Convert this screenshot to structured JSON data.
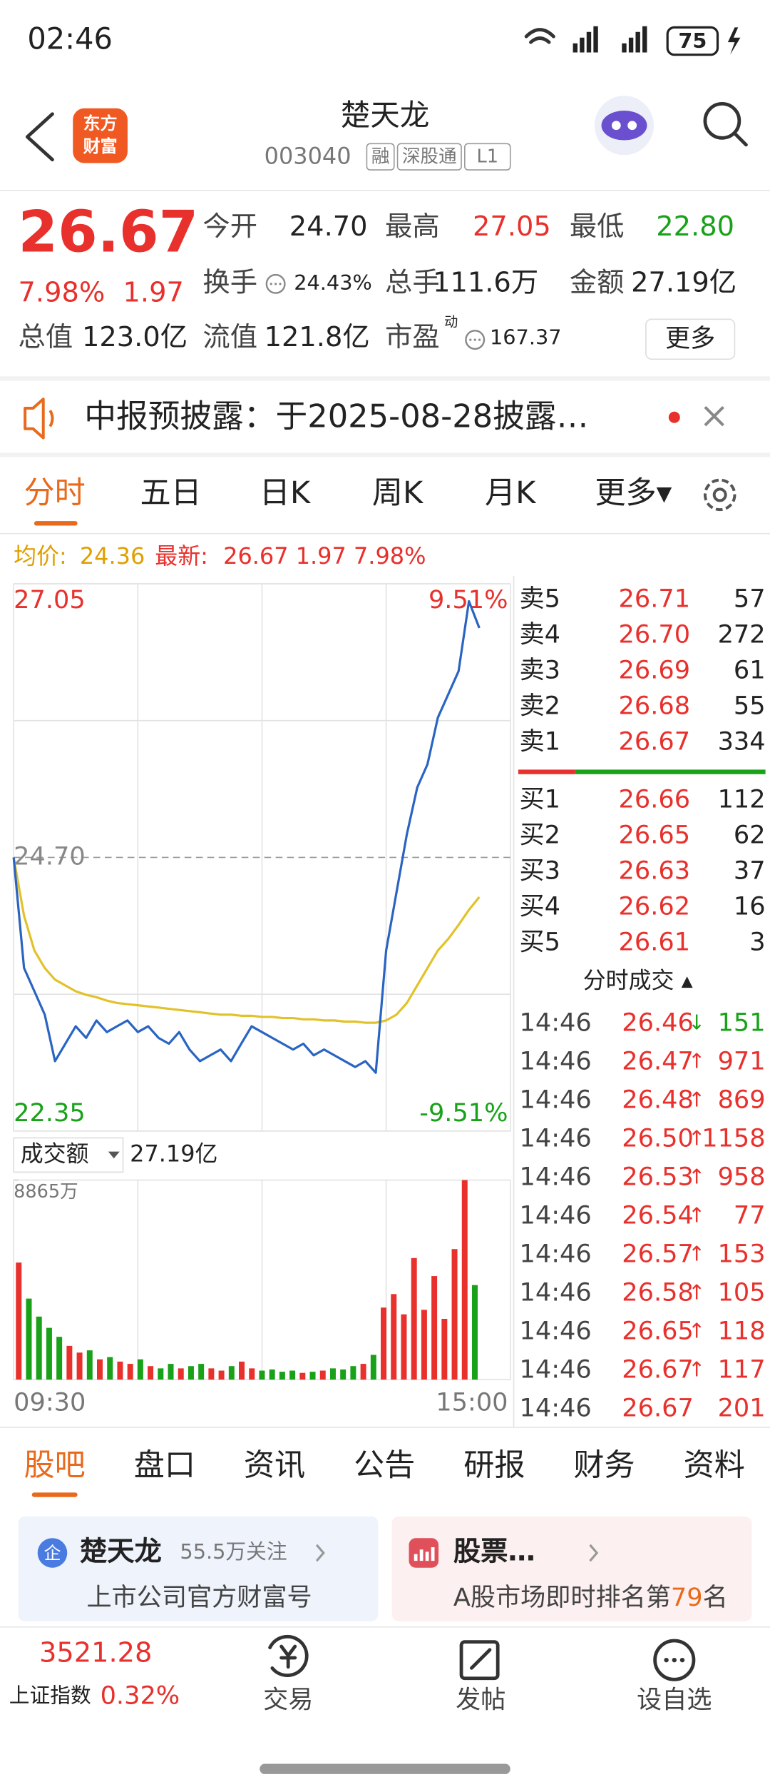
{
  "status_bar": {
    "time": "02:46",
    "battery": "75"
  },
  "header": {
    "logo": [
      "东方",
      "财富"
    ],
    "name": "楚天龙",
    "code": "003040",
    "tags": [
      "融",
      "深股通",
      "L1"
    ]
  },
  "quote": {
    "price": "26.67",
    "change_pct": "7.98%",
    "change": "1.97",
    "fields": [
      {
        "label": "今开",
        "value": "24.70",
        "color": "#222222"
      },
      {
        "label": "最高",
        "value": "27.05",
        "color": "#e8302c"
      },
      {
        "label": "最低",
        "value": "22.80",
        "color": "#19a119"
      },
      {
        "label": "换手",
        "value": "24.43%",
        "color": "#222222"
      },
      {
        "label": "总手",
        "value": "111.6万",
        "color": "#222222"
      },
      {
        "label": "金额",
        "value": "27.19亿",
        "color": "#222222"
      },
      {
        "label": "总值",
        "value": "123.0亿",
        "color": "#222222"
      },
      {
        "label": "流值",
        "value": "121.8亿",
        "color": "#222222"
      },
      {
        "label": "市盈",
        "superscript": "动",
        "value": "167.37",
        "color": "#222222"
      }
    ],
    "more": "更多"
  },
  "notice": "中报预披露：于2025-08-28披露…",
  "chart_tabs": [
    "分时",
    "五日",
    "日K",
    "周K",
    "月K",
    "更多▾"
  ],
  "summary": {
    "avg_label": "均价:",
    "avg": "24.36",
    "latest_label": "最新:",
    "latest": "26.67 1.97 7.98%"
  },
  "chart_data": [
    {
      "type": "line",
      "categories": [
        null,
        null,
        null,
        null,
        null,
        null,
        null,
        null,
        null,
        null,
        null,
        null,
        null,
        null,
        null,
        null,
        null,
        null,
        null,
        null,
        null,
        null,
        null,
        null,
        null,
        null,
        null,
        null,
        null,
        null,
        null,
        null,
        null,
        null,
        null,
        null,
        null,
        null,
        null,
        null,
        null,
        null,
        null,
        null,
        null,
        null,
        null,
        null,
        null
      ],
      "series": [
        {
          "color": "#2a64c2",
          "values": [
            24.7,
            23.75,
            23.55,
            23.35,
            22.95,
            23.1,
            23.25,
            23.15,
            23.3,
            23.2,
            23.25,
            23.3,
            23.2,
            23.25,
            23.15,
            23.1,
            23.2,
            23.05,
            22.95,
            23.0,
            23.05,
            22.95,
            23.1,
            23.25,
            23.2,
            23.15,
            23.1,
            23.05,
            23.1,
            23.0,
            23.05,
            23.0,
            22.95,
            22.9,
            22.95,
            22.85,
            23.9,
            24.4,
            24.9,
            25.3,
            25.5,
            25.9,
            26.1,
            26.3,
            26.9,
            26.67,
            null,
            null,
            null
          ]
        },
        {
          "color": "#e2c22a",
          "values": [
            24.7,
            24.2,
            23.9,
            23.75,
            23.65,
            23.6,
            23.55,
            23.52,
            23.5,
            23.47,
            23.45,
            23.44,
            23.43,
            23.42,
            23.41,
            23.4,
            23.39,
            23.38,
            23.37,
            23.36,
            23.35,
            23.35,
            23.34,
            23.34,
            23.33,
            23.33,
            23.32,
            23.32,
            23.31,
            23.31,
            23.3,
            23.3,
            23.29,
            23.29,
            23.28,
            23.28,
            23.3,
            23.35,
            23.45,
            23.6,
            23.75,
            23.9,
            24.0,
            24.12,
            24.25,
            24.36,
            null,
            null,
            null
          ]
        }
      ],
      "ylim": [
        22.35,
        27.05
      ],
      "yticks": [
        27.05,
        {
          "value": 24.7,
          "label": "24.70"
        },
        22.35
      ],
      "y2lim": [
        -9.51,
        9.51
      ],
      "y2ticks": [
        {
          "value": 9.51,
          "label": "9.51%"
        },
        {
          "value": -9.51,
          "label": "-9.51%"
        }
      ],
      "grid": true
    },
    {
      "type": "bar",
      "title": "成交额",
      "total": "27.19亿",
      "categories": [
        "09:30",
        null,
        null,
        null,
        null,
        null,
        null,
        null,
        null,
        null,
        null,
        null,
        null,
        null,
        null,
        null,
        null,
        null,
        null,
        null,
        null,
        null,
        null,
        null,
        null,
        null,
        null,
        null,
        null,
        null,
        null,
        null,
        null,
        null,
        null,
        null,
        null,
        null,
        null,
        null,
        null,
        null,
        null,
        null,
        null,
        null,
        null,
        null,
        "15:00"
      ],
      "values": [
        5200,
        3600,
        2800,
        2300,
        1900,
        1500,
        1200,
        1300,
        900,
        1000,
        800,
        700,
        900,
        600,
        500,
        700,
        500,
        600,
        700,
        500,
        400,
        600,
        800,
        500,
        400,
        450,
        350,
        400,
        300,
        350,
        400,
        500,
        450,
        600,
        700,
        1100,
        3200,
        3800,
        2900,
        5400,
        3100,
        4600,
        2700,
        5800,
        8865,
        4200,
        null,
        null,
        null
      ],
      "colors": [
        "#e8302c",
        "#19a119",
        "#19a119",
        "#19a119",
        "#19a119",
        "#e8302c",
        "#e8302c",
        "#19a119",
        "#e8302c",
        "#19a119",
        "#e8302c",
        "#e8302c",
        "#19a119",
        "#e8302c",
        "#19a119",
        "#19a119",
        "#e8302c",
        "#19a119",
        "#19a119",
        "#e8302c",
        "#e8302c",
        "#19a119",
        "#e8302c",
        "#e8302c",
        "#19a119",
        "#19a119",
        "#19a119",
        "#19a119",
        "#e8302c",
        "#19a119",
        "#e8302c",
        "#19a119",
        "#19a119",
        "#19a119",
        "#e8302c",
        "#19a119",
        "#e8302c",
        "#e8302c",
        "#e8302c",
        "#e8302c",
        "#e8302c",
        "#e8302c",
        "#e8302c",
        "#e8302c",
        "#e8302c",
        "#19a119",
        null,
        null,
        null
      ],
      "ylim": [
        0,
        8865
      ],
      "yticks": [
        {
          "value": 8865,
          "label": "8865万"
        }
      ]
    }
  ],
  "order_book": {
    "asks": [
      {
        "label": "卖5",
        "price": "26.71",
        "volume": "57"
      },
      {
        "label": "卖4",
        "price": "26.70",
        "volume": "272"
      },
      {
        "label": "卖3",
        "price": "26.69",
        "volume": "61"
      },
      {
        "label": "卖2",
        "price": "26.68",
        "volume": "55"
      },
      {
        "label": "卖1",
        "price": "26.67",
        "volume": "334"
      }
    ],
    "bids": [
      {
        "label": "买1",
        "price": "26.66",
        "volume": "112"
      },
      {
        "label": "买2",
        "price": "26.65",
        "volume": "62"
      },
      {
        "label": "买3",
        "price": "26.63",
        "volume": "37"
      },
      {
        "label": "买4",
        "price": "26.62",
        "volume": "16"
      },
      {
        "label": "买5",
        "price": "26.61",
        "volume": "3"
      }
    ]
  },
  "trades_title": "分时成交 ▴",
  "trades": [
    {
      "time": "14:46",
      "price": "26.46",
      "dir": "↓",
      "volume": "151"
    },
    {
      "time": "14:46",
      "price": "26.47",
      "dir": "↑",
      "volume": "971"
    },
    {
      "time": "14:46",
      "price": "26.48",
      "dir": "↑",
      "volume": "869"
    },
    {
      "time": "14:46",
      "price": "26.50",
      "dir": "↑",
      "volume": "1158"
    },
    {
      "time": "14:46",
      "price": "26.53",
      "dir": "↑",
      "volume": "958"
    },
    {
      "time": "14:46",
      "price": "26.54",
      "dir": "↑",
      "volume": "77"
    },
    {
      "time": "14:46",
      "price": "26.57",
      "dir": "↑",
      "volume": "153"
    },
    {
      "time": "14:46",
      "price": "26.58",
      "dir": "↑",
      "volume": "105"
    },
    {
      "time": "14:46",
      "price": "26.65",
      "dir": "↑",
      "volume": "118"
    },
    {
      "time": "14:46",
      "price": "26.67",
      "dir": "↑",
      "volume": "117"
    },
    {
      "time": "14:46",
      "price": "26.67",
      "volume": "201"
    }
  ],
  "bottom_tabs": [
    "股吧",
    "盘口",
    "资讯",
    "公告",
    "研报",
    "财务",
    "资料"
  ],
  "cards": {
    "left": {
      "icon": "企",
      "title": "楚天龙",
      "followers": "55.5万关注",
      "subtitle": "上市公司官方财富号"
    },
    "right": {
      "title": "股票…",
      "rank_prefix": "A股市场即时排名第",
      "rank": "79",
      "rank_suffix": "名"
    }
  },
  "footer": {
    "index_value": "3521.28",
    "index_name": "上证指数",
    "index_change": "0.32%",
    "actions": [
      "交易",
      "发帖",
      "设自选"
    ]
  }
}
